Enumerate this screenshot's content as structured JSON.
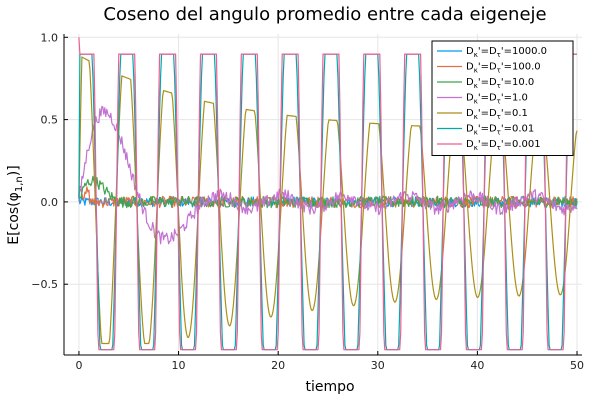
{
  "chart_data": {
    "type": "line",
    "title": "Coseno del angulo promedio entre cada eigeneje",
    "xlabel": "tiempo",
    "ylabel": "E[cos(φ",
    "ylabel_sub": "1,n",
    "ylabel_close": ")]",
    "xlim": [
      -1.5,
      50.5
    ],
    "ylim": [
      -0.93,
      1.02
    ],
    "xticks": [
      0,
      10,
      20,
      30,
      40,
      50
    ],
    "yticks": [
      -0.5,
      0.0,
      0.5,
      1.0
    ],
    "xtick_labels": [
      "0",
      "10",
      "20",
      "30",
      "40",
      "50"
    ],
    "ytick_labels": [
      "−0.5",
      "0.0",
      "0.5",
      "1.0"
    ],
    "grid": true,
    "legend_position": "top-right",
    "series": [
      {
        "name": "Dκ'=Dτ'=1000.0",
        "color": "#009AFA",
        "kind": "noise",
        "amp": 0.03
      },
      {
        "name": "Dκ'=Dτ'=100.0",
        "color": "#E36F47",
        "kind": "noise",
        "amp": 0.035
      },
      {
        "name": "Dκ'=Dτ'=10.0",
        "color": "#3EA44E",
        "kind": "noise",
        "amp": 0.035
      },
      {
        "name": "Dκ'=Dτ'=1.0",
        "color": "#C371D2",
        "kind": "noise",
        "amp": 0.04
      },
      {
        "name": "Dκ'=Dτ'=0.1",
        "color": "#AC8E18",
        "kind": "osc"
      },
      {
        "name": "Dκ'=Dτ'=0.01",
        "color": "#00A9AD",
        "kind": "osc"
      },
      {
        "name": "Dκ'=Dτ'=0.001",
        "color": "#ED5E93",
        "kind": "osc"
      }
    ],
    "legend_labels": [
      {
        "pre": "D",
        "sub1": "κ",
        "mid": "'=D",
        "sub2": "τ",
        "post": "'=1000.0"
      },
      {
        "pre": "D",
        "sub1": "κ",
        "mid": "'=D",
        "sub2": "τ",
        "post": "'=100.0"
      },
      {
        "pre": "D",
        "sub1": "κ",
        "mid": "'=D",
        "sub2": "τ",
        "post": "'=10.0"
      },
      {
        "pre": "D",
        "sub1": "κ",
        "mid": "'=D",
        "sub2": "τ",
        "post": "'=1.0"
      },
      {
        "pre": "D",
        "sub1": "κ",
        "mid": "'=D",
        "sub2": "τ",
        "post": "'=0.1"
      },
      {
        "pre": "D",
        "sub1": "κ",
        "mid": "'=D",
        "sub2": "τ",
        "post": "'=0.01"
      },
      {
        "pre": "D",
        "sub1": "κ",
        "mid": "'=D",
        "sub2": "τ",
        "post": "'=0.001"
      }
    ]
  }
}
